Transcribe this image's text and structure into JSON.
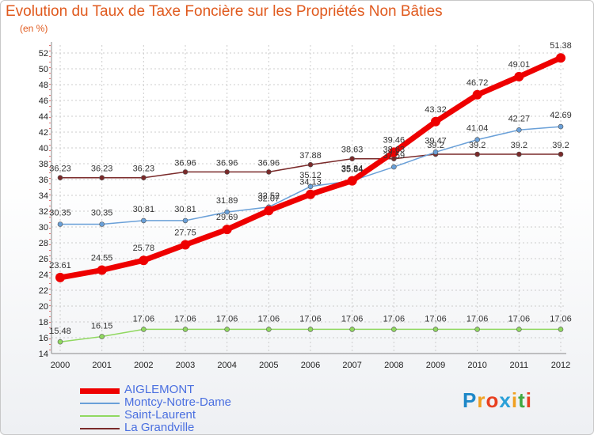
{
  "header": {
    "title": "Evolution du Taux de Taxe Foncière sur les Propriétés Non Bâties",
    "unit": "(en %)"
  },
  "brand": {
    "name": "Proxiti",
    "letters": [
      "P",
      "r",
      "o",
      "x",
      "i",
      "t",
      "i"
    ],
    "colors": [
      "#1e88c8",
      "#f0a020",
      "#e84020",
      "#2aa0d8",
      "#f0a020",
      "#40a840",
      "#e84020"
    ]
  },
  "chart_data": {
    "type": "line",
    "title": "Evolution du Taux de Taxe Foncière sur les Propriétés Non Bâties",
    "ylabel": "(en %)",
    "xlabel": "",
    "ylim": [
      14,
      52
    ],
    "y_ticks": [
      14,
      16,
      18,
      20,
      22,
      24,
      26,
      28,
      30,
      32,
      34,
      36,
      38,
      40,
      42,
      44,
      46,
      48,
      50,
      52
    ],
    "categories": [
      "2000",
      "2001",
      "2002",
      "2003",
      "2004",
      "2005",
      "2006",
      "2007",
      "2008",
      "2009",
      "2010",
      "2011",
      "2012"
    ],
    "series": [
      {
        "name": "La Grandville",
        "color": "#7a2a2a",
        "width": 1.5,
        "values": [
          36.23,
          36.23,
          36.23,
          36.96,
          36.96,
          36.96,
          37.88,
          38.63,
          38.63,
          39.2,
          39.2,
          39.2,
          39.2
        ],
        "labels": [
          "36.23",
          "36.23",
          "36.23",
          "36.96",
          "36.96",
          "36.96",
          "37.88",
          "38.63",
          "38.63",
          "39.2",
          "39.2",
          "39.2",
          "39.2"
        ]
      },
      {
        "name": "Montcy-Notre-Dame",
        "color": "#6aa0d8",
        "width": 1.5,
        "values": [
          30.35,
          30.35,
          30.81,
          30.81,
          31.89,
          32.52,
          35.12,
          35.84,
          37.59,
          39.47,
          41.04,
          42.27,
          42.69
        ],
        "labels": [
          "30.35",
          "30.35",
          "30.81",
          "30.81",
          "31.89",
          "32.52",
          "35.12",
          "35.84",
          "37.59",
          "39.47",
          "41.04",
          "42.27",
          "42.69"
        ]
      },
      {
        "name": "Saint-Laurent",
        "color": "#90d860",
        "width": 1.5,
        "values": [
          15.48,
          16.15,
          17.06,
          17.06,
          17.06,
          17.06,
          17.06,
          17.06,
          17.06,
          17.06,
          17.06,
          17.06,
          17.06
        ],
        "labels": [
          "15.48",
          "16.15",
          "17.06",
          "17.06",
          "17.06",
          "17.06",
          "17.06",
          "17.06",
          "17.06",
          "17.06",
          "17.06",
          "17.06",
          "17.06"
        ]
      },
      {
        "name": "AIGLEMONT",
        "color": "#ee0000",
        "width": 7,
        "values": [
          23.61,
          24.55,
          25.78,
          27.75,
          29.69,
          32.07,
          34.13,
          35.84,
          39.46,
          43.32,
          46.72,
          49.01,
          51.38
        ],
        "labels": [
          "23.61",
          "24.55",
          "25.78",
          "27.75",
          "29.69",
          "32.07",
          "34.13",
          "35.84",
          "39.46",
          "43.32",
          "46.72",
          "49.01",
          "51.38"
        ]
      }
    ]
  },
  "legend": [
    {
      "name": "AIGLEMONT",
      "color": "#ee0000"
    },
    {
      "name": "Montcy-Notre-Dame",
      "color": "#6aa0d8"
    },
    {
      "name": "Saint-Laurent",
      "color": "#90d860"
    },
    {
      "name": "La Grandville",
      "color": "#7a2a2a"
    }
  ]
}
